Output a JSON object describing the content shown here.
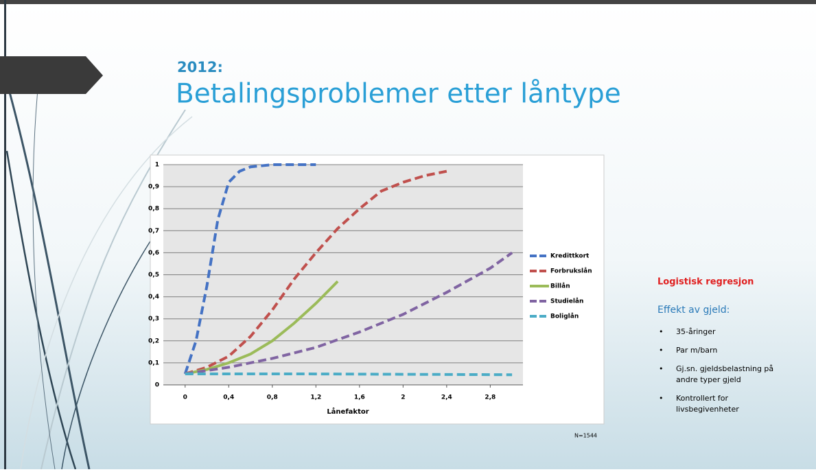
{
  "slide": {
    "year": "2012:",
    "title": "Betalingsproblemer etter låntype"
  },
  "chart_data": {
    "type": "line",
    "x_label": "Lånefaktor",
    "note": "N=1544",
    "xlim": [
      -0.2,
      3.1
    ],
    "ylim": [
      0,
      1
    ],
    "xticks": [
      0,
      {
        "value": 0.4,
        "label": "0,4"
      },
      {
        "value": 0.8,
        "label": "0,8"
      },
      {
        "value": 1.2,
        "label": "1,2"
      },
      {
        "value": 1.6,
        "label": "1,6"
      },
      2,
      {
        "value": 2.4,
        "label": "2,4"
      },
      {
        "value": 2.8,
        "label": "2,8"
      }
    ],
    "yticks": [
      0,
      {
        "value": 0.1,
        "label": "0,1"
      },
      {
        "value": 0.2,
        "label": "0,2"
      },
      {
        "value": 0.3,
        "label": "0,3"
      },
      {
        "value": 0.4,
        "label": "0,4"
      },
      {
        "value": 0.5,
        "label": "0,5"
      },
      {
        "value": 0.6,
        "label": "0,6"
      },
      {
        "value": 0.7,
        "label": "0,7"
      },
      {
        "value": 0.8,
        "label": "0,8"
      },
      {
        "value": 0.9,
        "label": "0,9"
      },
      1
    ],
    "grid": true,
    "series": [
      {
        "name": "Kredittkort",
        "color": "#4472c4",
        "dashed": true,
        "x": [
          0,
          0.1,
          0.2,
          0.3,
          0.4,
          0.5,
          0.6,
          0.8,
          1.0,
          1.2
        ],
        "values": [
          0.05,
          0.2,
          0.45,
          0.75,
          0.92,
          0.97,
          0.99,
          1,
          1,
          1
        ]
      },
      {
        "name": "Forbrukslån",
        "color": "#c0504d",
        "dashed": true,
        "x": [
          0,
          0.2,
          0.4,
          0.6,
          0.8,
          1.0,
          1.2,
          1.4,
          1.6,
          1.8,
          2.0,
          2.2,
          2.4
        ],
        "values": [
          0.05,
          0.08,
          0.13,
          0.22,
          0.34,
          0.48,
          0.6,
          0.71,
          0.8,
          0.88,
          0.92,
          0.95,
          0.97
        ]
      },
      {
        "name": "Billån",
        "color": "#9bbb59",
        "dashed": false,
        "x": [
          0,
          0.2,
          0.4,
          0.6,
          0.8,
          1.0,
          1.2,
          1.4
        ],
        "values": [
          0.05,
          0.07,
          0.1,
          0.14,
          0.2,
          0.28,
          0.37,
          0.47
        ]
      },
      {
        "name": "Studielån",
        "color": "#8064a2",
        "dashed": true,
        "x": [
          0,
          0.4,
          0.8,
          1.2,
          1.6,
          2.0,
          2.4,
          2.8,
          3.0
        ],
        "values": [
          0.05,
          0.08,
          0.12,
          0.17,
          0.24,
          0.32,
          0.42,
          0.53,
          0.6
        ]
      },
      {
        "name": "Boliglån",
        "color": "#4bacc6",
        "dashed": true,
        "x": [
          0,
          1,
          2,
          3
        ],
        "values": [
          0.05,
          0.05,
          0.048,
          0.046
        ]
      }
    ]
  },
  "notes": {
    "heading": "Logistisk regresjon",
    "subheading": "Effekt av gjeld:",
    "bullets": [
      [
        "35-åringer"
      ],
      [
        "Par m/barn"
      ],
      [
        "Gj.sn. gjeldsbelastning på",
        "andre typer gjeld"
      ],
      [
        "Kontrollert for",
        "livsbegivenheter"
      ]
    ],
    "bullet_symbol": "•"
  }
}
